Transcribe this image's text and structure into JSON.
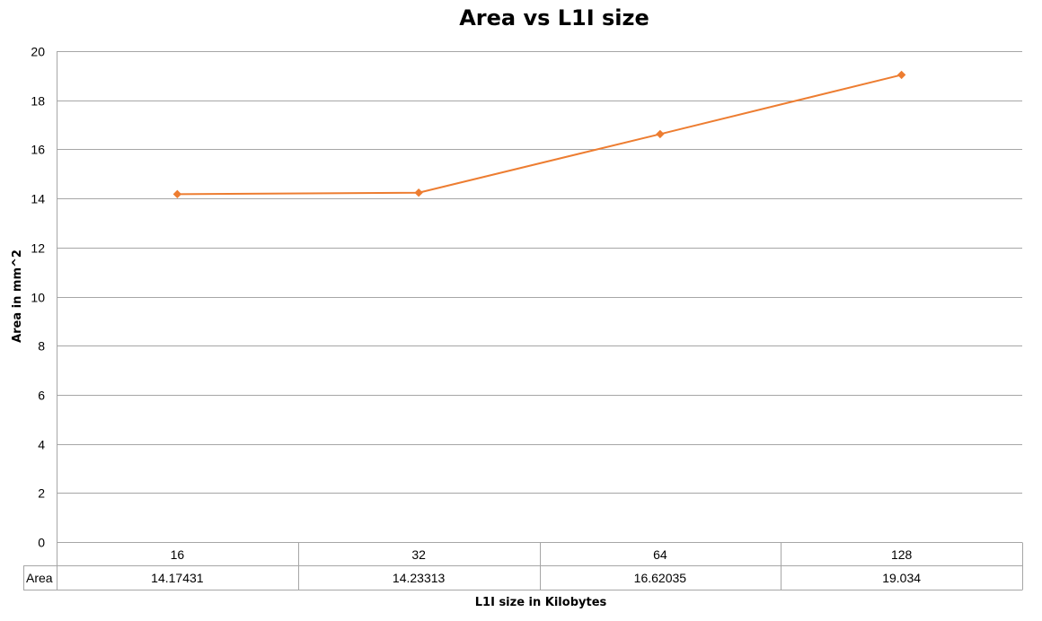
{
  "chart_data": {
    "type": "line",
    "title": "Area vs L1I size",
    "xlabel": "L1I size in Kilobytes",
    "ylabel": "Area in mm^2",
    "categories": [
      "16",
      "32",
      "64",
      "128"
    ],
    "series": [
      {
        "name": "Area",
        "values": [
          14.17431,
          14.23313,
          16.62035,
          19.034
        ],
        "value_labels": [
          "14.17431",
          "14.23313",
          "16.62035",
          "19.034"
        ],
        "color": "#ED7D31",
        "marker": "diamond"
      }
    ],
    "ylim": [
      0,
      20
    ],
    "yticks": [
      "0",
      "2",
      "4",
      "6",
      "8",
      "10",
      "12",
      "14",
      "16",
      "18",
      "20"
    ],
    "grid": true,
    "legend": "data-table",
    "colors": {
      "gridline": "#A6A6A6",
      "table_border": "#A6A6A6"
    }
  }
}
